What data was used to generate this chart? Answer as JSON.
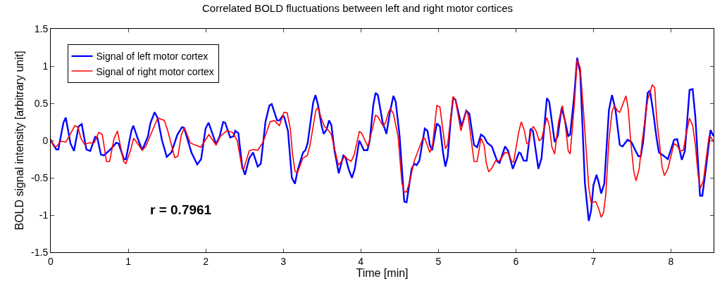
{
  "chart_data": {
    "type": "line",
    "title": "Correlated BOLD fluctuations between left and right motor cortices",
    "xlabel": "Time [min]",
    "ylabel": "BOLD signal intensity [arbitrary unit]",
    "annotations": [
      "r = 0.7961"
    ],
    "xlim": [
      0,
      8.55
    ],
    "xticks": [
      0,
      1,
      2,
      3,
      4,
      5,
      6,
      7,
      8
    ],
    "ylim": [
      -1.5,
      1.5
    ],
    "yticks": [
      -1.5,
      -1,
      -0.5,
      0,
      0.5,
      1,
      1.5
    ],
    "legend": "top left",
    "series": [
      {
        "name": "Signal of left motor cortex",
        "color": "#0000ff",
        "x": [
          0,
          0.073,
          0.098,
          0.164,
          0.194,
          0.255,
          0.3,
          0.36,
          0.4,
          0.46,
          0.51,
          0.573,
          0.6,
          0.648,
          0.685,
          0.77,
          0.845,
          0.875,
          0.945,
          0.97,
          1.04,
          1.066,
          1.118,
          1.18,
          1.255,
          1.285,
          1.34,
          1.38,
          1.436,
          1.497,
          1.557,
          1.634,
          1.694,
          1.72,
          1.815,
          1.89,
          1.94,
          1.997,
          2.036,
          2.07,
          2.133,
          2.18,
          2.224,
          2.25,
          2.315,
          2.36,
          2.38,
          2.42,
          2.47,
          2.506,
          2.56,
          2.61,
          2.67,
          2.71,
          2.77,
          2.82,
          2.85,
          2.92,
          2.95,
          2.99,
          3.01,
          3.06,
          3.11,
          3.15,
          3.19,
          3.255,
          3.285,
          3.315,
          3.385,
          3.415,
          3.45,
          3.49,
          3.52,
          3.56,
          3.59,
          3.62,
          3.66,
          3.715,
          3.775,
          3.8,
          3.845,
          3.885,
          3.92,
          3.98,
          4.04,
          4.085,
          4.115,
          4.16,
          4.19,
          4.22,
          4.28,
          4.33,
          4.375,
          4.42,
          4.45,
          4.5,
          4.56,
          4.59,
          4.655,
          4.69,
          4.72,
          4.755,
          4.825,
          4.86,
          4.89,
          4.92,
          4.98,
          5.02,
          5.06,
          5.09,
          5.12,
          5.16,
          5.19,
          5.22,
          5.3,
          5.36,
          5.4,
          5.46,
          5.5,
          5.55,
          5.59,
          5.63,
          5.69,
          5.76,
          5.79,
          5.86,
          5.9,
          5.96,
          6.04,
          6.06,
          6.1,
          6.14,
          6.19,
          6.22,
          6.29,
          6.33,
          6.4,
          6.43,
          6.5,
          6.54,
          6.59,
          6.63,
          6.675,
          6.7,
          6.755,
          6.79,
          6.83,
          6.89,
          6.94,
          6.97,
          7.0,
          7.04,
          7.07,
          7.1,
          7.14,
          7.2,
          7.24,
          7.285,
          7.34,
          7.375,
          7.44,
          7.49,
          7.54,
          7.58,
          7.61,
          7.64,
          7.7,
          7.73,
          7.77,
          7.815,
          7.845,
          7.9,
          7.96,
          8.04,
          8.08,
          8.14,
          8.18,
          8.24,
          8.28,
          8.315,
          8.35,
          8.375,
          8.405,
          8.45,
          8.51,
          8.55
        ],
        "values": [
          0,
          -0.12,
          -0.12,
          0.24,
          0.31,
          -0.04,
          -0.14,
          0.19,
          0.22,
          -0.12,
          -0.14,
          0.05,
          0.04,
          -0.19,
          -0.2,
          -0.12,
          -0.03,
          -0.04,
          -0.25,
          -0.25,
          0.13,
          0.2,
          0.04,
          -0.13,
          0.06,
          0.23,
          0.38,
          0.3,
          0,
          -0.22,
          -0.16,
          0.08,
          0.18,
          0.17,
          -0.16,
          -0.32,
          -0.25,
          0.16,
          0.24,
          0.14,
          -0.05,
          0.06,
          0.25,
          0.24,
          0.04,
          0.06,
          0.13,
          0.1,
          -0.35,
          -0.46,
          -0.24,
          -0.16,
          -0.35,
          -0.31,
          0.25,
          0.47,
          0.49,
          0.27,
          0.27,
          0.33,
          0.32,
          0.13,
          -0.5,
          -0.58,
          -0.38,
          -0.16,
          -0.13,
          -0.03,
          0.51,
          0.61,
          0.47,
          0.22,
          0.09,
          0.15,
          0.27,
          0.21,
          -0.13,
          -0.44,
          -0.2,
          -0.22,
          -0.39,
          -0.5,
          -0.39,
          0,
          -0.13,
          -0.13,
          0,
          0.47,
          0.64,
          0.61,
          0.25,
          0.09,
          0.38,
          0.6,
          0.52,
          0.06,
          -0.82,
          -0.83,
          -0.38,
          -0.31,
          -0.33,
          -0.27,
          0.16,
          0.13,
          -0.06,
          -0.13,
          0.23,
          0.19,
          -0.16,
          -0.35,
          -0.22,
          0.28,
          0.57,
          0.55,
          0.19,
          0.4,
          0.36,
          -0.06,
          -0.09,
          0.08,
          0.05,
          -0.03,
          -0.08,
          -0.28,
          -0.3,
          -0.08,
          -0.14,
          -0.38,
          -0.16,
          -0.17,
          -0.27,
          -0.27,
          0.16,
          0.13,
          -0.38,
          -0.24,
          0.57,
          0.52,
          -0.02,
          0.06,
          0.44,
          0.28,
          0.06,
          0.08,
          0.63,
          1.11,
          0.91,
          -0.57,
          -1.08,
          -0.94,
          -0.6,
          -0.46,
          -0.57,
          -0.71,
          -0.58,
          0.41,
          0.61,
          0.41,
          -0.06,
          -0.08,
          0.01,
          -0.02,
          -0.13,
          -0.21,
          -0.21,
          -0.03,
          0.64,
          0.67,
          0.39,
          0.03,
          -0.16,
          -0.2,
          -0.25,
          0.01,
          0.02,
          -0.26,
          -0.14,
          0.68,
          0.69,
          0.31,
          -0.31,
          -0.74,
          -0.74,
          -0.38,
          0.14,
          0.06
        ]
      },
      {
        "name": "Signal of right motor cortex",
        "color": "#ff0000",
        "x": [
          0,
          0.04,
          0.073,
          0.13,
          0.194,
          0.24,
          0.31,
          0.35,
          0.39,
          0.436,
          0.5,
          0.56,
          0.62,
          0.665,
          0.72,
          0.76,
          0.815,
          0.86,
          0.94,
          0.97,
          1.03,
          1.07,
          1.12,
          1.18,
          1.225,
          1.29,
          1.375,
          1.39,
          1.466,
          1.51,
          1.6,
          1.64,
          1.685,
          1.725,
          1.8,
          1.86,
          1.936,
          2.04,
          2.133,
          2.19,
          2.27,
          2.345,
          2.406,
          2.47,
          2.49,
          2.56,
          2.61,
          2.67,
          2.74,
          2.83,
          2.885,
          2.92,
          2.95,
          3.01,
          3.05,
          3.09,
          3.12,
          3.15,
          3.18,
          3.25,
          3.31,
          3.345,
          3.42,
          3.445,
          3.49,
          3.53,
          3.58,
          3.62,
          3.71,
          3.76,
          3.79,
          3.83,
          3.875,
          3.915,
          3.98,
          4.01,
          4.09,
          4.12,
          4.19,
          4.22,
          4.285,
          4.32,
          4.35,
          4.38,
          4.42,
          4.48,
          4.53,
          4.56,
          4.59,
          4.63,
          4.69,
          4.8,
          4.825,
          4.89,
          4.925,
          4.98,
          5.02,
          5.09,
          5.12,
          5.19,
          5.22,
          5.29,
          5.36,
          5.38,
          5.46,
          5.5,
          5.55,
          5.59,
          5.62,
          5.65,
          5.69,
          5.74,
          5.79,
          5.86,
          5.9,
          5.945,
          5.97,
          6.04,
          6.07,
          6.11,
          6.14,
          6.17,
          6.195,
          6.225,
          6.26,
          6.3,
          6.33,
          6.4,
          6.43,
          6.465,
          6.5,
          6.55,
          6.6,
          6.63,
          6.675,
          6.7,
          6.755,
          6.79,
          6.83,
          6.875,
          6.94,
          6.97,
          7.03,
          7.07,
          7.1,
          7.13,
          7.16,
          7.2,
          7.24,
          7.27,
          7.31,
          7.34,
          7.42,
          7.45,
          7.48,
          7.52,
          7.55,
          7.59,
          7.63,
          7.7,
          7.76,
          7.79,
          7.815,
          7.885,
          7.915,
          7.96,
          8.04,
          8.08,
          8.12,
          8.16,
          8.195,
          8.24,
          8.28,
          8.315,
          8.35,
          8.38,
          8.42,
          8.49,
          8.52,
          8.55
        ],
        "values": [
          0.02,
          -0.08,
          -0.08,
          -0.01,
          -0.02,
          0.06,
          0.2,
          0.18,
          0.03,
          -0.05,
          -0.03,
          -0.03,
          0.11,
          0.08,
          -0.28,
          -0.28,
          0.02,
          0.13,
          -0.28,
          -0.31,
          -0.13,
          0.03,
          -0.04,
          -0.13,
          -0.08,
          0.08,
          0.29,
          0.3,
          0.27,
          0.13,
          -0.23,
          -0.21,
          0.08,
          0.17,
          -0.03,
          -0.06,
          -0.09,
          0.08,
          -0.06,
          0.06,
          0.13,
          0.11,
          0,
          -0.38,
          -0.38,
          -0.14,
          -0.12,
          -0.13,
          -0.02,
          0.25,
          0.27,
          0.23,
          0.2,
          0.38,
          0.37,
          0.16,
          -0.19,
          -0.41,
          -0.44,
          -0.24,
          -0.2,
          -0.06,
          0.41,
          0.44,
          0.3,
          0.19,
          0.14,
          0.08,
          -0.33,
          -0.27,
          -0.21,
          -0.25,
          -0.28,
          -0.19,
          0.12,
          0.1,
          -0.08,
          0.03,
          0.34,
          0.32,
          0.2,
          0.24,
          0.36,
          0.43,
          0.36,
          0.06,
          -0.57,
          -0.69,
          -0.69,
          -0.55,
          -0.27,
          0.03,
          0.03,
          -0.16,
          -0.06,
          0.47,
          0.45,
          -0.11,
          -0.05,
          0.59,
          0.55,
          0.13,
          0.4,
          0.36,
          -0.28,
          -0.28,
          0.03,
          -0.06,
          -0.31,
          -0.42,
          -0.37,
          -0.27,
          -0.27,
          -0.16,
          -0.17,
          -0.28,
          -0.29,
          0.13,
          0.25,
          0.13,
          -0.04,
          -0.05,
          0.13,
          0.19,
          0.13,
          0,
          0.02,
          0.31,
          0.2,
          -0.09,
          -0.18,
          0.25,
          0.47,
          0.28,
          -0.14,
          -0.18,
          0.5,
          1.08,
          0.98,
          0.35,
          -0.63,
          -0.83,
          -0.82,
          -0.92,
          -1.03,
          -0.97,
          -0.72,
          0,
          0.39,
          0.47,
          0.4,
          0.38,
          0.6,
          0.42,
          0,
          -0.41,
          -0.54,
          -0.38,
          0,
          0.55,
          0.75,
          0.71,
          0.31,
          -0.35,
          -0.47,
          -0.38,
          -0.04,
          -0.07,
          -0.14,
          -0.13,
          0.08,
          0.3,
          0.2,
          -0.06,
          -0.46,
          -0.64,
          -0.53,
          0.05,
          0.04,
          -0.02
        ]
      }
    ]
  }
}
